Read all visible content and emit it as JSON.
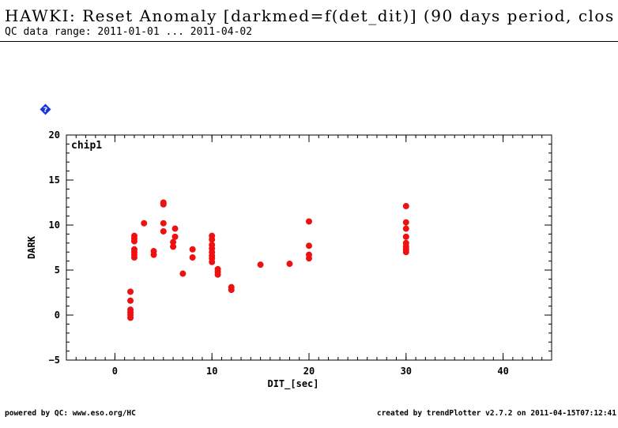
{
  "header": {
    "title": "HAWKI: Reset Anomaly [darkmed=f(det_dit)] (90 days period, clos",
    "subtitle": "QC data range: 2011-01-01 ... 2011-04-02"
  },
  "icons": {
    "help": "help-diamond-icon"
  },
  "footer": {
    "left": "powered by QC: www.eso.org/HC",
    "right": "created by trendPlotter v2.7.2 on 2011-04-15T07:12:41"
  },
  "colors": {
    "points": "#ee1111",
    "help_icon": "#1a33dd"
  },
  "chart_data": {
    "type": "scatter",
    "panel_label": "chip1",
    "xlabel": "DIT_[sec]",
    "ylabel": "DARK",
    "xlim": [
      -5,
      45
    ],
    "ylim": [
      -5,
      20
    ],
    "xticks": [
      0,
      10,
      20,
      30,
      40
    ],
    "yticks": [
      -5,
      0,
      5,
      10,
      15,
      20
    ],
    "grid": false,
    "series": [
      {
        "points": [
          [
            1.6,
            2.6
          ],
          [
            1.6,
            1.6
          ],
          [
            1.6,
            0.6
          ],
          [
            1.6,
            0.3
          ],
          [
            1.6,
            0.0
          ],
          [
            1.6,
            -0.3
          ],
          [
            2.0,
            8.8
          ],
          [
            2.0,
            8.5
          ],
          [
            2.0,
            8.2
          ],
          [
            2.0,
            7.3
          ],
          [
            2.0,
            7.0
          ],
          [
            2.0,
            6.7
          ],
          [
            2.0,
            6.4
          ],
          [
            3.0,
            10.2
          ],
          [
            4.0,
            7.1
          ],
          [
            4.0,
            6.7
          ],
          [
            5.0,
            12.5
          ],
          [
            5.0,
            12.3
          ],
          [
            5.0,
            10.2
          ],
          [
            5.0,
            9.3
          ],
          [
            6.0,
            8.1
          ],
          [
            6.0,
            7.6
          ],
          [
            6.2,
            9.6
          ],
          [
            6.2,
            8.7
          ],
          [
            7.0,
            4.6
          ],
          [
            8.0,
            7.3
          ],
          [
            8.0,
            6.4
          ],
          [
            10.0,
            8.8
          ],
          [
            10.0,
            8.4
          ],
          [
            10.0,
            7.8
          ],
          [
            10.0,
            7.4
          ],
          [
            10.0,
            7.0
          ],
          [
            10.0,
            6.6
          ],
          [
            10.0,
            6.3
          ],
          [
            10.0,
            5.9
          ],
          [
            10.6,
            5.1
          ],
          [
            10.6,
            4.8
          ],
          [
            10.6,
            4.5
          ],
          [
            12.0,
            3.1
          ],
          [
            12.0,
            2.8
          ],
          [
            15.0,
            5.6
          ],
          [
            18.0,
            5.7
          ],
          [
            20.0,
            10.4
          ],
          [
            20.0,
            7.7
          ],
          [
            20.0,
            6.7
          ],
          [
            20.0,
            6.3
          ],
          [
            30.0,
            12.1
          ],
          [
            30.0,
            10.3
          ],
          [
            30.0,
            9.6
          ],
          [
            30.0,
            8.7
          ],
          [
            30.0,
            8.0
          ],
          [
            30.0,
            7.6
          ],
          [
            30.0,
            7.3
          ],
          [
            30.0,
            7.0
          ]
        ]
      }
    ]
  }
}
